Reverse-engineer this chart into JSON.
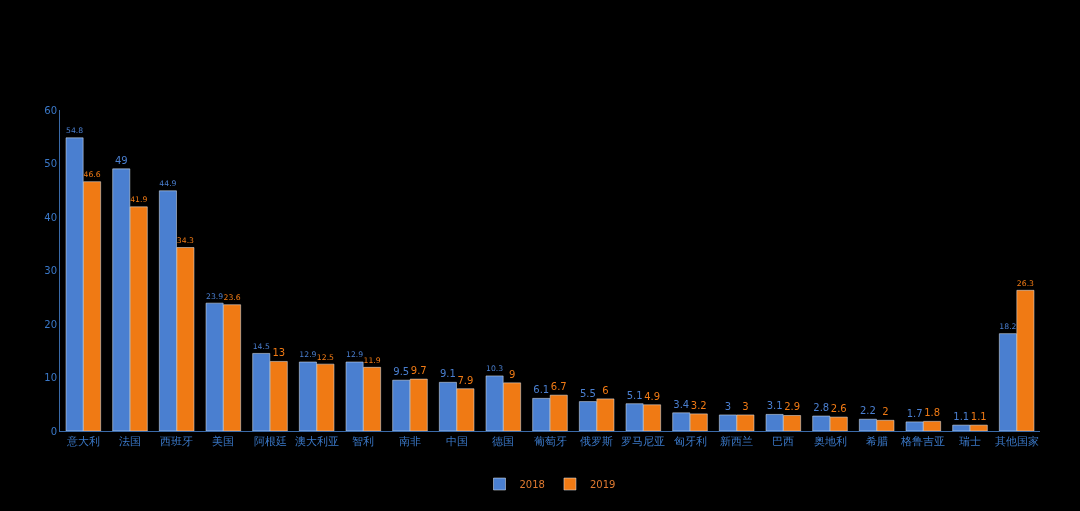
{
  "chart_data": {
    "type": "bar",
    "categories": [
      "意大利",
      "法国",
      "西班牙",
      "美国",
      "阿根廷",
      "澳大利亚",
      "智利",
      "南非",
      "中国",
      "德国",
      "葡萄牙",
      "俄罗斯",
      "罗马尼亚",
      "匈牙利",
      "新西兰",
      "巴西",
      "奥地利",
      "希腊",
      "格鲁吉亚",
      "瑞士",
      "其他国家"
    ],
    "series": [
      {
        "name": "2018",
        "color": "#4a7fd0",
        "values": [
          54.8,
          49,
          44.9,
          23.9,
          14.5,
          12.9,
          12.9,
          9.5,
          9.1,
          10.3,
          6.1,
          5.5,
          5.1,
          3.4,
          3,
          3.1,
          2.8,
          2.2,
          1.7,
          1.1,
          18.2
        ]
      },
      {
        "name": "2019",
        "color": "#f07a14",
        "values": [
          46.6,
          41.9,
          34.3,
          23.6,
          13,
          12.5,
          11.9,
          9.7,
          7.9,
          9,
          6.7,
          6,
          4.9,
          3.2,
          3,
          2.9,
          2.6,
          2,
          1.8,
          1.1,
          26.3
        ]
      }
    ],
    "ylim": [
      0,
      60
    ],
    "yticks": [
      0,
      10,
      20,
      30,
      40,
      50,
      60
    ],
    "grid": false,
    "legend": "bottom",
    "data_labels": true
  }
}
